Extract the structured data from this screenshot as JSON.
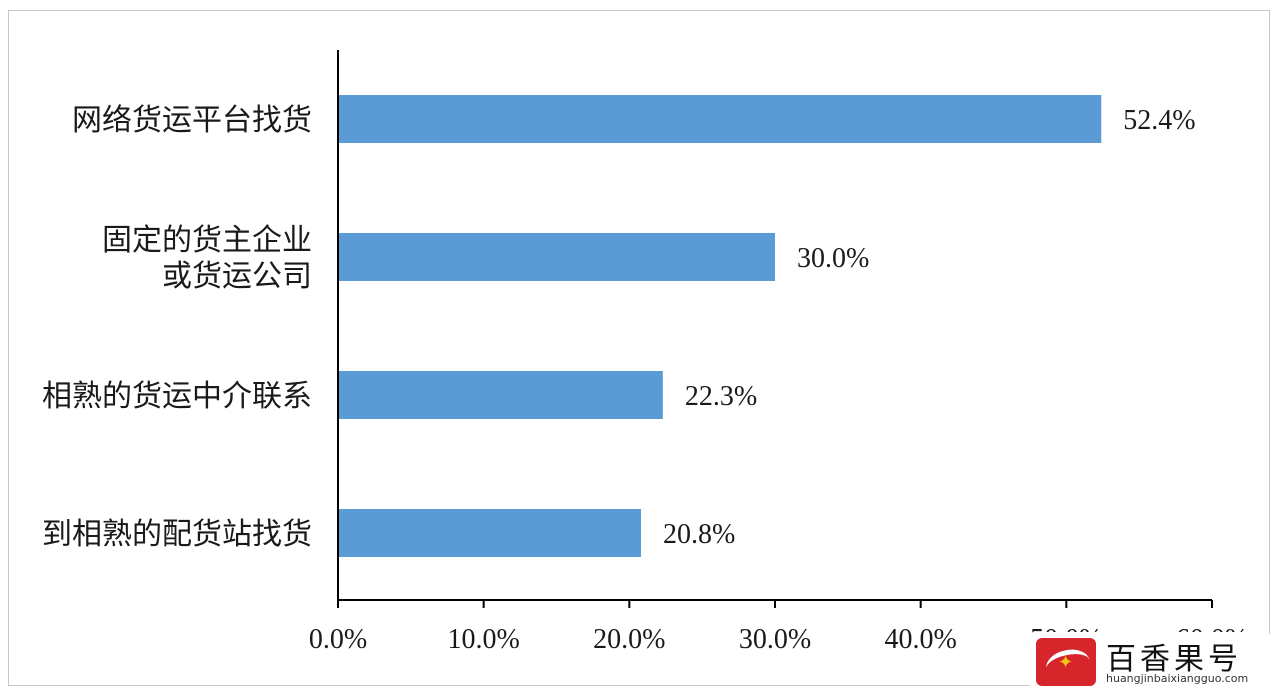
{
  "chart_data": {
    "type": "bar",
    "orientation": "horizontal",
    "categories": [
      [
        "网络货运平台找货"
      ],
      [
        "固定的货主企业",
        "或货运公司"
      ],
      [
        "相熟的货运中介联系"
      ],
      [
        "到相熟的配货站找货"
      ]
    ],
    "values": [
      52.4,
      30.0,
      22.3,
      20.8
    ],
    "value_labels": [
      "52.4%",
      "30.0%",
      "22.3%",
      "20.8%"
    ],
    "xlim": [
      0,
      60
    ],
    "xticks": [
      0,
      10,
      20,
      30,
      40,
      50,
      60
    ],
    "xtick_labels": [
      "0.0%",
      "10.0%",
      "20.0%",
      "30.0%",
      "40.0%",
      "50.0%",
      "60.0%"
    ],
    "bar_color": "#5b9bd5",
    "grid": false,
    "legend": "none"
  },
  "watermark": {
    "title": "百香果号",
    "url": "huangjinbaixiangguo.com",
    "logo_color": "#d7262b"
  }
}
